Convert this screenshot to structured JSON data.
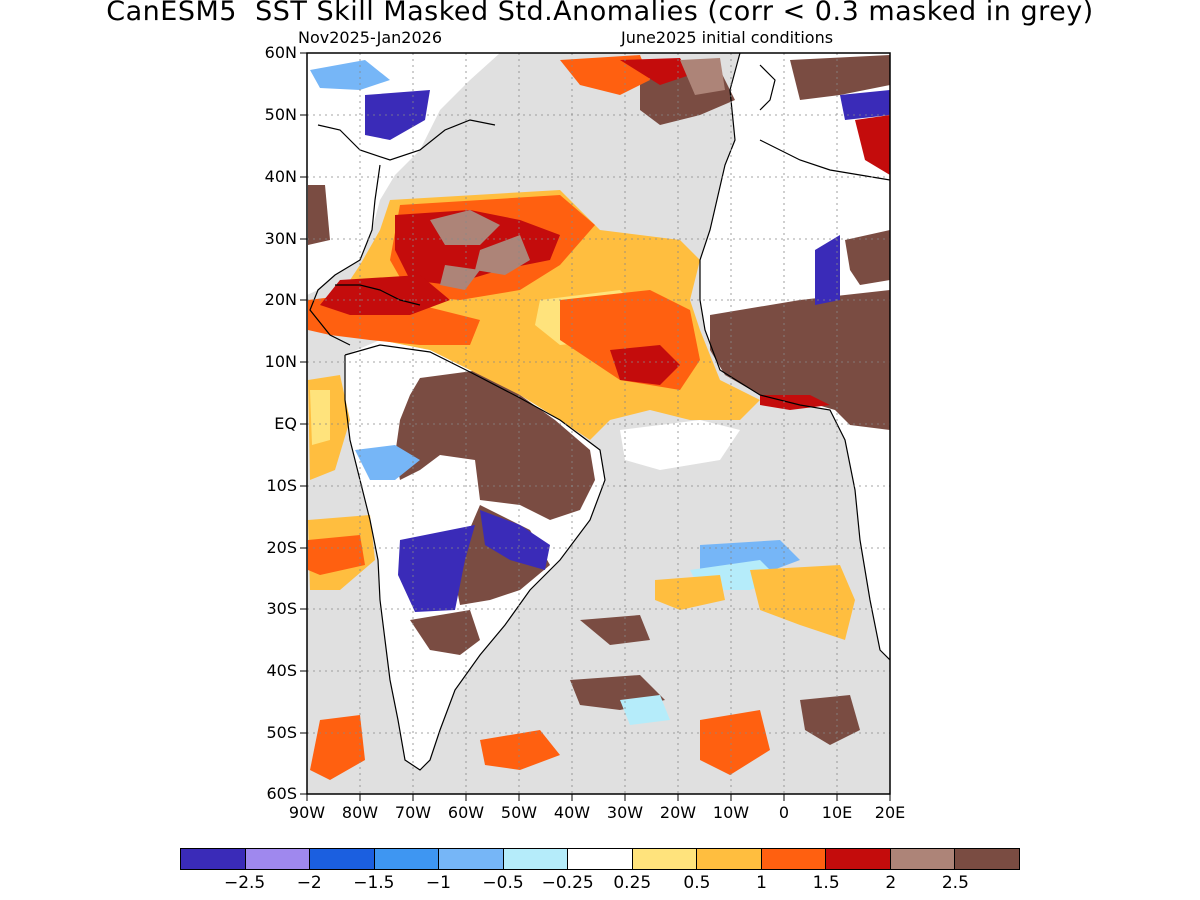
{
  "title": "CanESM5  SST Skill Masked Std.Anomalies (corr < 0.3 masked in grey)",
  "subtitle_left": "Nov2025-Jan2026",
  "subtitle_right": "June2025 initial conditions",
  "lat_labels": [
    "60N",
    "50N",
    "40N",
    "30N",
    "20N",
    "10N",
    "EQ",
    "10S",
    "20S",
    "30S",
    "40S",
    "50S",
    "60S"
  ],
  "lon_labels": [
    "90W",
    "80W",
    "70W",
    "60W",
    "50W",
    "40W",
    "30W",
    "20W",
    "10W",
    "0",
    "10E",
    "20E"
  ],
  "map_extent": {
    "lon": [
      -90,
      20
    ],
    "lat": [
      -60,
      60
    ]
  },
  "colorbar": {
    "colors": [
      "#3a2bb8",
      "#9f88ee",
      "#1b5fe0",
      "#3e96f2",
      "#76b6f7",
      "#b5ecfa",
      "#ffffff",
      "#ffe37c",
      "#ffbe3f",
      "#ff6010",
      "#c40c0c",
      "#ad8478",
      "#7a4c42"
    ],
    "tick_labels": [
      "-2.5",
      "-2",
      "-1.5",
      "-1",
      "-0.5",
      "-0.25",
      "0.25",
      "0.5",
      "1",
      "1.5",
      "2",
      "2.5"
    ]
  },
  "mask_color": "#e0e0e0",
  "land_color": "#ffffff",
  "coastline_color": "#000000"
}
